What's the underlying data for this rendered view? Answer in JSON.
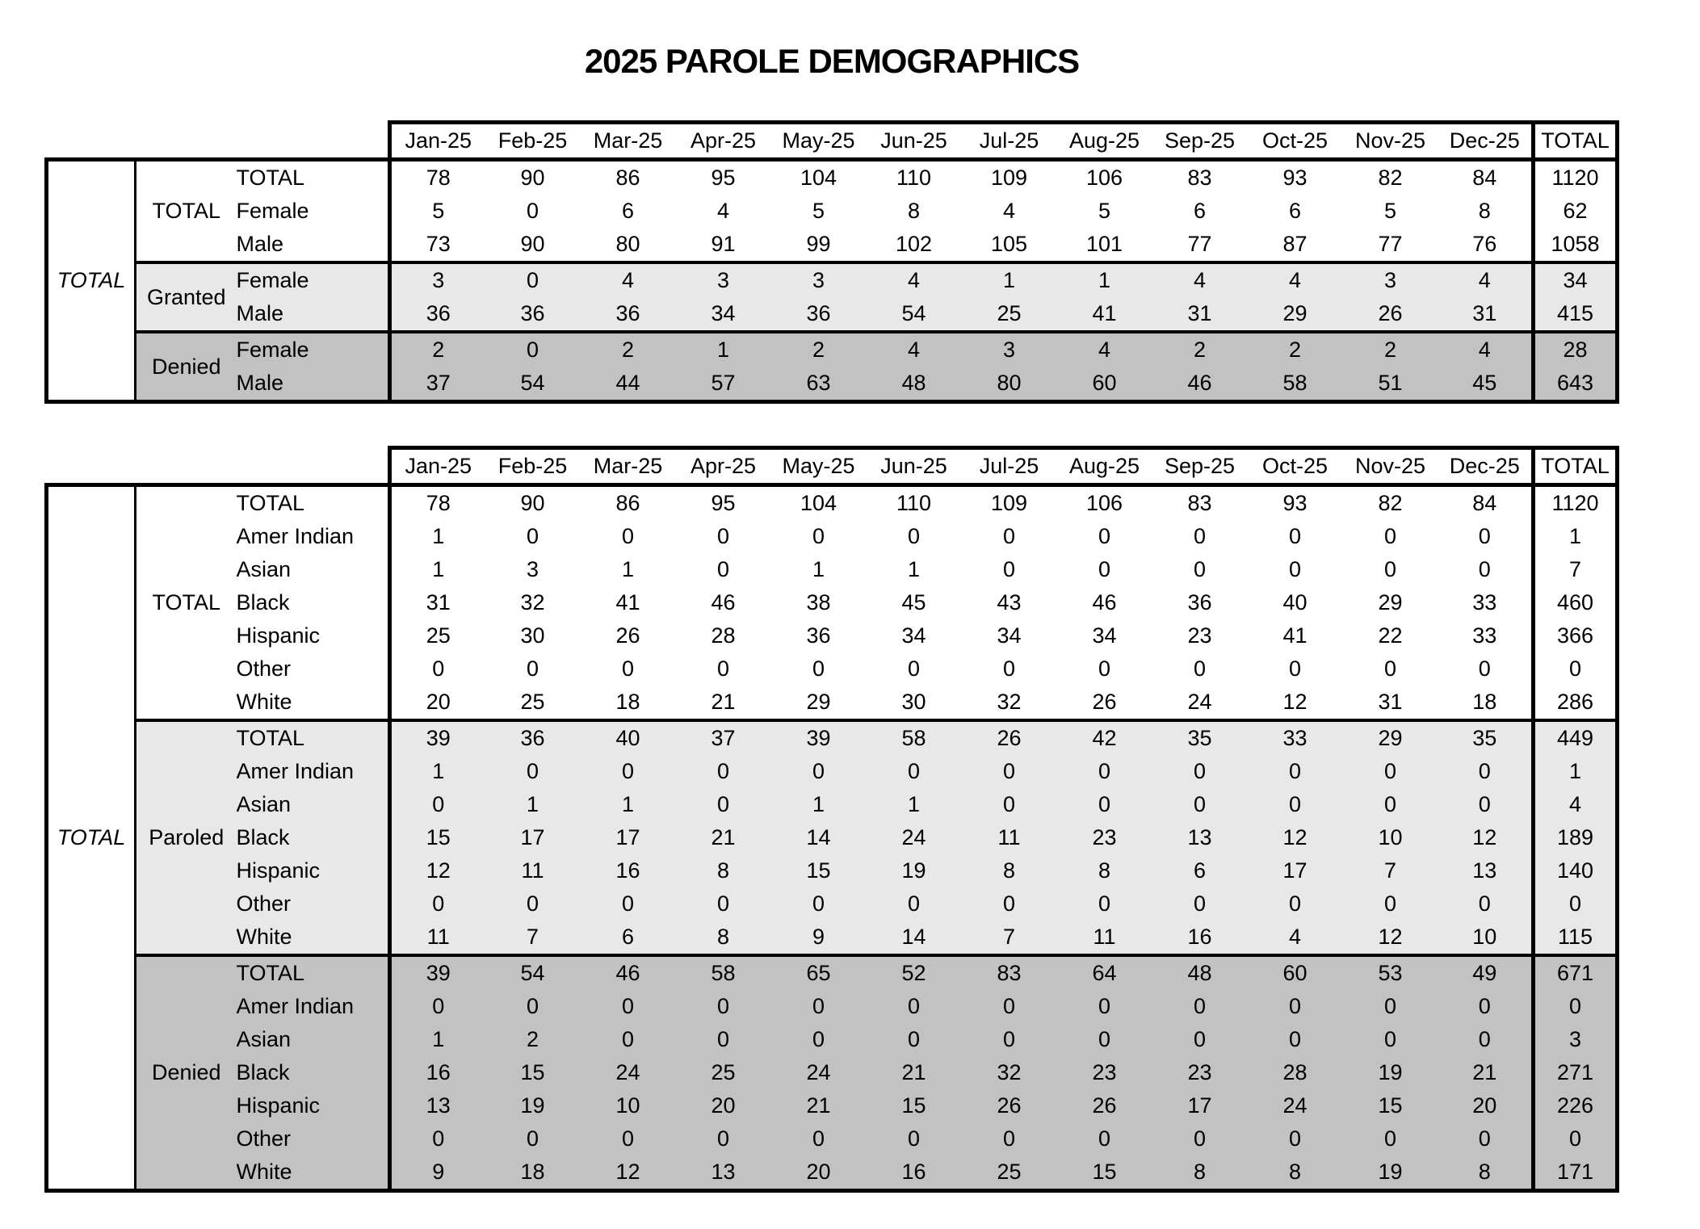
{
  "title": "2025 PAROLE DEMOGRAPHICS",
  "columns": {
    "months": [
      "Jan-25",
      "Feb-25",
      "Mar-25",
      "Apr-25",
      "May-25",
      "Jun-25",
      "Jul-25",
      "Aug-25",
      "Sep-25",
      "Oct-25",
      "Nov-25",
      "Dec-25"
    ],
    "total_header": "TOTAL"
  },
  "colors": {
    "background": "#ffffff",
    "border": "#000000",
    "section_light": "#e8e8e8",
    "section_dark": "#c2c2c2"
  },
  "gender_table": {
    "outer_label": "TOTAL",
    "sections": [
      {
        "label": "TOTAL",
        "shade": "none",
        "emphasis": true,
        "rows": [
          {
            "label": "TOTAL",
            "values": [
              78,
              90,
              86,
              95,
              104,
              110,
              109,
              106,
              83,
              93,
              82,
              84
            ],
            "total": 1120
          },
          {
            "label": "Female",
            "values": [
              5,
              0,
              6,
              4,
              5,
              8,
              4,
              5,
              6,
              6,
              5,
              8
            ],
            "total": 62
          },
          {
            "label": "Male",
            "values": [
              73,
              90,
              80,
              91,
              99,
              102,
              105,
              101,
              77,
              87,
              77,
              76
            ],
            "total": 1058
          }
        ]
      },
      {
        "label": "Granted",
        "shade": "light",
        "emphasis": false,
        "rows": [
          {
            "label": "Female",
            "values": [
              3,
              0,
              4,
              3,
              3,
              4,
              1,
              1,
              4,
              4,
              3,
              4
            ],
            "total": 34
          },
          {
            "label": "Male",
            "values": [
              36,
              36,
              36,
              34,
              36,
              54,
              25,
              41,
              31,
              29,
              26,
              31
            ],
            "total": 415
          }
        ]
      },
      {
        "label": "Denied",
        "shade": "dark",
        "emphasis": false,
        "rows": [
          {
            "label": "Female",
            "values": [
              2,
              0,
              2,
              1,
              2,
              4,
              3,
              4,
              2,
              2,
              2,
              4
            ],
            "total": 28
          },
          {
            "label": "Male",
            "values": [
              37,
              54,
              44,
              57,
              63,
              48,
              80,
              60,
              46,
              58,
              51,
              45
            ],
            "total": 643
          }
        ]
      }
    ]
  },
  "race_table": {
    "outer_label": "TOTAL",
    "sections": [
      {
        "label": "TOTAL",
        "shade": "none",
        "emphasis": true,
        "rows": [
          {
            "label": "TOTAL",
            "values": [
              78,
              90,
              86,
              95,
              104,
              110,
              109,
              106,
              83,
              93,
              82,
              84
            ],
            "total": 1120
          },
          {
            "label": "Amer Indian",
            "values": [
              1,
              0,
              0,
              0,
              0,
              0,
              0,
              0,
              0,
              0,
              0,
              0
            ],
            "total": 1
          },
          {
            "label": "Asian",
            "values": [
              1,
              3,
              1,
              0,
              1,
              1,
              0,
              0,
              0,
              0,
              0,
              0
            ],
            "total": 7
          },
          {
            "label": "Black",
            "values": [
              31,
              32,
              41,
              46,
              38,
              45,
              43,
              46,
              36,
              40,
              29,
              33
            ],
            "total": 460
          },
          {
            "label": "Hispanic",
            "values": [
              25,
              30,
              26,
              28,
              36,
              34,
              34,
              34,
              23,
              41,
              22,
              33
            ],
            "total": 366
          },
          {
            "label": "Other",
            "values": [
              0,
              0,
              0,
              0,
              0,
              0,
              0,
              0,
              0,
              0,
              0,
              0
            ],
            "total": 0
          },
          {
            "label": "White",
            "values": [
              20,
              25,
              18,
              21,
              29,
              30,
              32,
              26,
              24,
              12,
              31,
              18
            ],
            "total": 286
          }
        ]
      },
      {
        "label": "Paroled",
        "shade": "light",
        "emphasis": false,
        "rows": [
          {
            "label": "TOTAL",
            "values": [
              39,
              36,
              40,
              37,
              39,
              58,
              26,
              42,
              35,
              33,
              29,
              35
            ],
            "total": 449
          },
          {
            "label": "Amer Indian",
            "values": [
              1,
              0,
              0,
              0,
              0,
              0,
              0,
              0,
              0,
              0,
              0,
              0
            ],
            "total": 1
          },
          {
            "label": "Asian",
            "values": [
              0,
              1,
              1,
              0,
              1,
              1,
              0,
              0,
              0,
              0,
              0,
              0
            ],
            "total": 4
          },
          {
            "label": "Black",
            "values": [
              15,
              17,
              17,
              21,
              14,
              24,
              11,
              23,
              13,
              12,
              10,
              12
            ],
            "total": 189
          },
          {
            "label": "Hispanic",
            "values": [
              12,
              11,
              16,
              8,
              15,
              19,
              8,
              8,
              6,
              17,
              7,
              13
            ],
            "total": 140
          },
          {
            "label": "Other",
            "values": [
              0,
              0,
              0,
              0,
              0,
              0,
              0,
              0,
              0,
              0,
              0,
              0
            ],
            "total": 0
          },
          {
            "label": "White",
            "values": [
              11,
              7,
              6,
              8,
              9,
              14,
              7,
              11,
              16,
              4,
              12,
              10
            ],
            "total": 115
          }
        ]
      },
      {
        "label": "Denied",
        "shade": "dark",
        "emphasis": false,
        "rows": [
          {
            "label": "TOTAL",
            "values": [
              39,
              54,
              46,
              58,
              65,
              52,
              83,
              64,
              48,
              60,
              53,
              49
            ],
            "total": 671
          },
          {
            "label": "Amer Indian",
            "values": [
              0,
              0,
              0,
              0,
              0,
              0,
              0,
              0,
              0,
              0,
              0,
              0
            ],
            "total": 0
          },
          {
            "label": "Asian",
            "values": [
              1,
              2,
              0,
              0,
              0,
              0,
              0,
              0,
              0,
              0,
              0,
              0
            ],
            "total": 3
          },
          {
            "label": "Black",
            "values": [
              16,
              15,
              24,
              25,
              24,
              21,
              32,
              23,
              23,
              28,
              19,
              21
            ],
            "total": 271
          },
          {
            "label": "Hispanic",
            "values": [
              13,
              19,
              10,
              20,
              21,
              15,
              26,
              26,
              17,
              24,
              15,
              20
            ],
            "total": 226
          },
          {
            "label": "Other",
            "values": [
              0,
              0,
              0,
              0,
              0,
              0,
              0,
              0,
              0,
              0,
              0,
              0
            ],
            "total": 0
          },
          {
            "label": "White",
            "values": [
              9,
              18,
              12,
              13,
              20,
              16,
              25,
              15,
              8,
              8,
              19,
              8
            ],
            "total": 171
          }
        ]
      }
    ]
  }
}
